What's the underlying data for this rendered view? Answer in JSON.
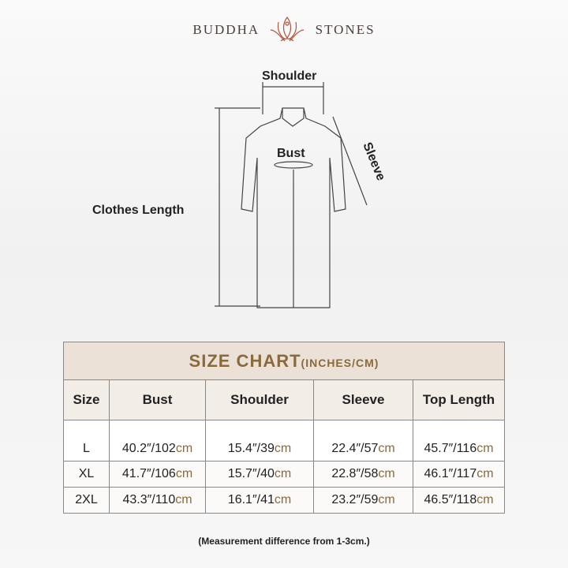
{
  "brand": {
    "left": "BUDDHA",
    "right": "STONES"
  },
  "diagram": {
    "shoulder": "Shoulder",
    "bust": "Bust",
    "sleeve": "Sleeve",
    "length": "Clothes Length"
  },
  "table": {
    "title": "SIZE CHART",
    "title_unit": "(INCHES/CM)",
    "headers": [
      "Size",
      "Bust",
      "Shoulder",
      "Sleeve",
      "Top Length"
    ],
    "unit": "cm",
    "rows": [
      {
        "size": "L",
        "cells": [
          "40.2″/102",
          "15.4″/39",
          "22.4″/57",
          "45.7″/116"
        ]
      },
      {
        "size": "XL",
        "cells": [
          "41.7″/106",
          "15.7″/40",
          "22.8″/58",
          "46.1″/117"
        ]
      },
      {
        "size": "2XL",
        "cells": [
          "43.3″/110",
          "16.1″/41",
          "23.2″/59",
          "46.5″/118"
        ]
      }
    ]
  },
  "note": "(Measurement difference from 1-3cm.)",
  "colors": {
    "accent": "#8a6a3c",
    "title_bg": "#ece1d6",
    "logo": "#b0543a"
  }
}
